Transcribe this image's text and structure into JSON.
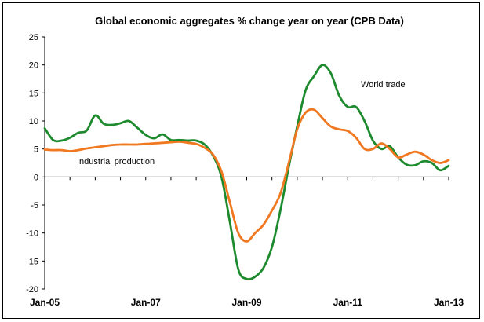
{
  "chart_data": {
    "type": "line",
    "title": "Global economic aggregates % change year on year (CPB Data)",
    "xlabel": "",
    "ylabel": "",
    "ylim": [
      -20,
      25
    ],
    "yticks": [
      25,
      20,
      15,
      10,
      5,
      0,
      -5,
      -10,
      -15,
      -20
    ],
    "xlim": [
      "2005-01",
      "2013-01"
    ],
    "xtick_labels": [
      "Jan-05",
      "Jan-07",
      "Jan-09",
      "Jan-11",
      "Jan-13"
    ],
    "xtick_dates": [
      "2005-01",
      "2007-01",
      "2009-01",
      "2011-01",
      "2013-01"
    ],
    "grid": false,
    "annotations": [
      "World trade",
      "Industrial production"
    ],
    "series": [
      {
        "name": "World trade",
        "color": "#1e8a2e",
        "x": [
          "2005-01",
          "2005-03",
          "2005-05",
          "2005-07",
          "2005-09",
          "2005-11",
          "2006-01",
          "2006-03",
          "2006-05",
          "2006-07",
          "2006-09",
          "2006-11",
          "2007-01",
          "2007-03",
          "2007-05",
          "2007-07",
          "2007-09",
          "2007-11",
          "2008-01",
          "2008-03",
          "2008-05",
          "2008-07",
          "2008-09",
          "2008-11",
          "2009-01",
          "2009-03",
          "2009-05",
          "2009-07",
          "2009-09",
          "2009-11",
          "2010-01",
          "2010-03",
          "2010-05",
          "2010-07",
          "2010-09",
          "2010-11",
          "2011-01",
          "2011-03",
          "2011-05",
          "2011-07",
          "2011-09",
          "2011-11",
          "2012-01",
          "2012-03",
          "2012-05",
          "2012-07",
          "2012-09",
          "2012-11",
          "2013-01"
        ],
        "values": [
          8.7,
          6.6,
          6.5,
          7.0,
          7.9,
          8.3,
          11.0,
          9.5,
          9.3,
          9.6,
          10.0,
          8.8,
          7.5,
          6.9,
          7.6,
          6.6,
          6.6,
          6.5,
          6.5,
          5.8,
          3.8,
          0.0,
          -8.0,
          -16.5,
          -18.2,
          -17.8,
          -16.2,
          -12.5,
          -6.0,
          1.8,
          9.0,
          15.5,
          18.0,
          20.0,
          18.5,
          14.5,
          12.5,
          12.5,
          10.0,
          6.5,
          5.0,
          5.5,
          3.5,
          2.2,
          2.1,
          2.8,
          2.5,
          1.2,
          2.0
        ]
      },
      {
        "name": "Industrial production",
        "color": "#f07820",
        "x": [
          "2005-01",
          "2005-03",
          "2005-05",
          "2005-07",
          "2005-09",
          "2005-11",
          "2006-01",
          "2006-03",
          "2006-05",
          "2006-07",
          "2006-09",
          "2006-11",
          "2007-01",
          "2007-03",
          "2007-05",
          "2007-07",
          "2007-09",
          "2007-11",
          "2008-01",
          "2008-03",
          "2008-05",
          "2008-07",
          "2008-09",
          "2008-11",
          "2009-01",
          "2009-03",
          "2009-05",
          "2009-07",
          "2009-09",
          "2009-11",
          "2010-01",
          "2010-03",
          "2010-05",
          "2010-07",
          "2010-09",
          "2010-11",
          "2011-01",
          "2011-03",
          "2011-05",
          "2011-07",
          "2011-09",
          "2011-11",
          "2012-01",
          "2012-03",
          "2012-05",
          "2012-07",
          "2012-09",
          "2012-11",
          "2013-01"
        ],
        "values": [
          4.9,
          4.8,
          4.8,
          4.6,
          4.8,
          5.1,
          5.3,
          5.5,
          5.7,
          5.8,
          5.8,
          5.8,
          5.9,
          6.0,
          6.1,
          6.2,
          6.3,
          6.1,
          5.9,
          5.2,
          4.0,
          1.0,
          -4.5,
          -10.0,
          -11.5,
          -10.0,
          -8.5,
          -6.0,
          -3.0,
          2.5,
          8.5,
          11.5,
          12.0,
          10.5,
          9.0,
          8.5,
          8.2,
          7.0,
          5.0,
          5.0,
          6.0,
          5.0,
          3.5,
          4.0,
          4.5,
          4.0,
          3.0,
          2.5,
          3.0
        ]
      }
    ]
  }
}
